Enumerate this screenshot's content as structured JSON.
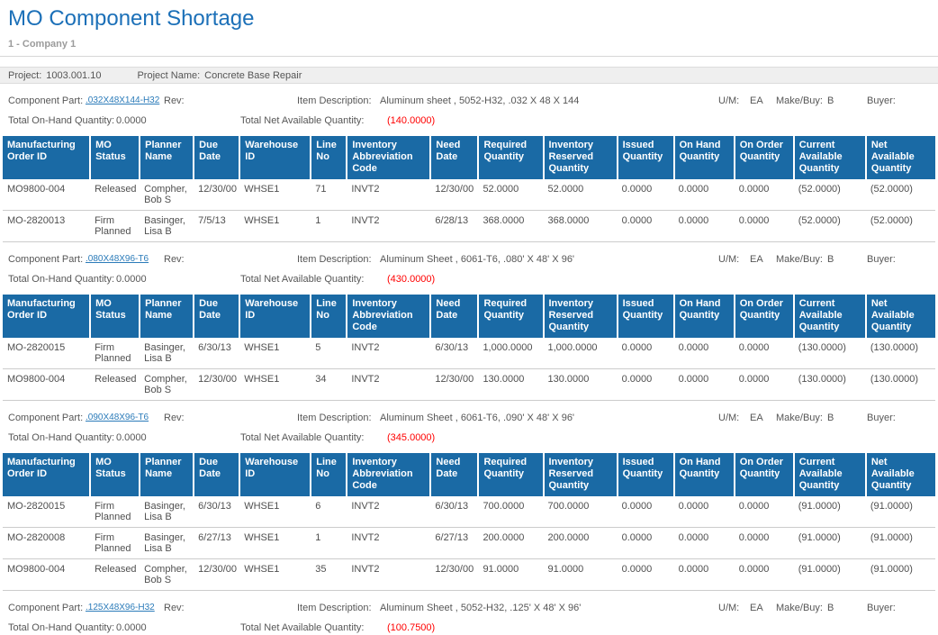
{
  "header": {
    "title": "MO Component Shortage",
    "company": "1 - Company 1"
  },
  "project": {
    "label": "Project:",
    "value": "1003.001.10",
    "name_label": "Project Name:",
    "name_value": "Concrete Base Repair"
  },
  "labels": {
    "component_part": "Component Part:",
    "rev": "Rev:",
    "item_description": "Item Description:",
    "um": "U/M:",
    "make_buy": "Make/Buy:",
    "buyer": "Buyer:",
    "total_on_hand": "Total On-Hand Quantity:",
    "total_net_available": "Total Net Available Quantity:"
  },
  "colors": {
    "title_blue": "#1c70b8",
    "table_header_blue": "#1a6aa5",
    "negative_red": "#ff0000",
    "link_blue": "#2b7bb9"
  },
  "table_headers": [
    "Manufacturing Order ID",
    "MO Status",
    "Planner Name",
    "Due Date",
    "Warehouse ID",
    "Line No",
    "Inventory Abbreviation Code",
    "Need Date",
    "Required Quantity",
    "Inventory Reserved Quantity",
    "Issued Quantity",
    "On Hand Quantity",
    "On Order Quantity",
    "Current Available Quantity",
    "Net Available Quantity"
  ],
  "sections": [
    {
      "part": ".032X48X144-H32",
      "rev": "",
      "description": "Aluminum sheet , 5052-H32, .032 X 48 X 144",
      "um": "EA",
      "make_buy": "B",
      "buyer": "",
      "total_on_hand": "0.0000",
      "total_net_available": "(140.0000)",
      "rows": [
        [
          "MO9800-004",
          "Released",
          "Compher, Bob S",
          "12/30/00",
          "WHSE1",
          "71",
          "INVT2",
          "12/30/00",
          "52.0000",
          "52.0000",
          "0.0000",
          "0.0000",
          "0.0000",
          "(52.0000)",
          "(52.0000)"
        ],
        [
          "MO-2820013",
          "Firm Planned",
          "Basinger, Lisa B",
          "7/5/13",
          "WHSE1",
          "1",
          "INVT2",
          "6/28/13",
          "368.0000",
          "368.0000",
          "0.0000",
          "0.0000",
          "0.0000",
          "(52.0000)",
          "(52.0000)"
        ]
      ]
    },
    {
      "part": ".080X48X96-T6",
      "rev": "",
      "description": "Aluminum Sheet , 6061-T6, .080' X 48' X 96'",
      "um": "EA",
      "make_buy": "B",
      "buyer": "",
      "total_on_hand": "0.0000",
      "total_net_available": "(430.0000)",
      "rows": [
        [
          "MO-2820015",
          "Firm Planned",
          "Basinger, Lisa B",
          "6/30/13",
          "WHSE1",
          "5",
          "INVT2",
          "6/30/13",
          "1,000.0000",
          "1,000.0000",
          "0.0000",
          "0.0000",
          "0.0000",
          "(130.0000)",
          "(130.0000)"
        ],
        [
          "MO9800-004",
          "Released",
          "Compher, Bob S",
          "12/30/00",
          "WHSE1",
          "34",
          "INVT2",
          "12/30/00",
          "130.0000",
          "130.0000",
          "0.0000",
          "0.0000",
          "0.0000",
          "(130.0000)",
          "(130.0000)"
        ]
      ]
    },
    {
      "part": ".090X48X96-T6",
      "rev": "",
      "description": "Aluminum Sheet , 6061-T6, .090' X 48' X 96'",
      "um": "EA",
      "make_buy": "B",
      "buyer": "",
      "total_on_hand": "0.0000",
      "total_net_available": "(345.0000)",
      "rows": [
        [
          "MO-2820015",
          "Firm Planned",
          "Basinger, Lisa B",
          "6/30/13",
          "WHSE1",
          "6",
          "INVT2",
          "6/30/13",
          "700.0000",
          "700.0000",
          "0.0000",
          "0.0000",
          "0.0000",
          "(91.0000)",
          "(91.0000)"
        ],
        [
          "MO-2820008",
          "Firm Planned",
          "Basinger, Lisa B",
          "6/27/13",
          "WHSE1",
          "1",
          "INVT2",
          "6/27/13",
          "200.0000",
          "200.0000",
          "0.0000",
          "0.0000",
          "0.0000",
          "(91.0000)",
          "(91.0000)"
        ],
        [
          "MO9800-004",
          "Released",
          "Compher, Bob S",
          "12/30/00",
          "WHSE1",
          "35",
          "INVT2",
          "12/30/00",
          "91.0000",
          "91.0000",
          "0.0000",
          "0.0000",
          "0.0000",
          "(91.0000)",
          "(91.0000)"
        ]
      ]
    },
    {
      "part": ".125X48X96-H32",
      "rev": "",
      "description": "Aluminum Sheet , 5052-H32, .125' X 48' X 96'",
      "um": "EA",
      "make_buy": "B",
      "buyer": "",
      "total_on_hand": "0.0000",
      "total_net_available": "(100.7500)",
      "rows": []
    }
  ]
}
